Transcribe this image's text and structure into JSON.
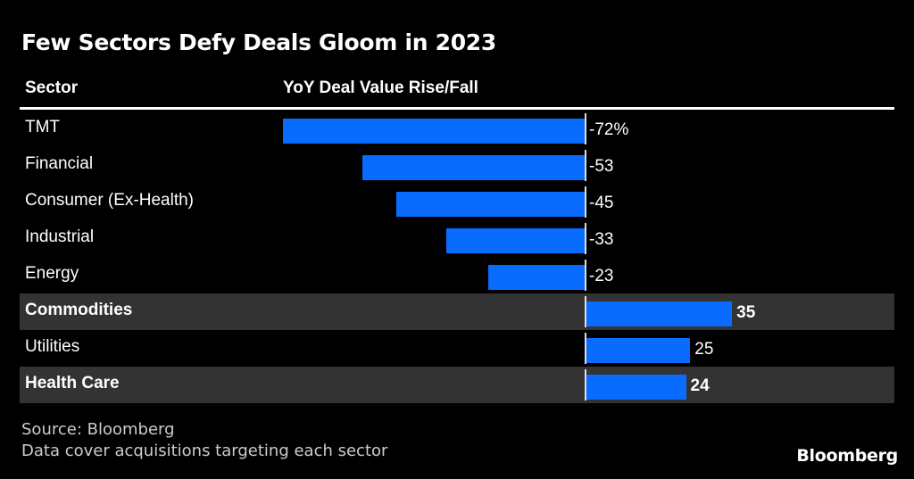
{
  "title": "Few Sectors Defy Deals Gloom in 2023",
  "columns": {
    "sector": "Sector",
    "value": "YoY Deal Value Rise/Fall"
  },
  "bar_color": "#0a6cff",
  "highlight_color": "#333333",
  "chart_data": {
    "type": "bar",
    "orientation": "horizontal",
    "title": "Few Sectors Defy Deals Gloom in 2023",
    "xlabel": "YoY Deal Value Rise/Fall",
    "ylabel": "Sector",
    "unit": "%",
    "xlim": [
      -72,
      72
    ],
    "categories": [
      "TMT",
      "Financial",
      "Consumer (Ex-Health)",
      "Industrial",
      "Energy",
      "Commodities",
      "Utilities",
      "Health Care"
    ],
    "values": [
      -72,
      -53,
      -45,
      -33,
      -23,
      35,
      25,
      24
    ],
    "labels": [
      "-72%",
      "-53",
      "-45",
      "-33",
      "-23",
      "35",
      "25",
      "24"
    ],
    "highlighted": [
      false,
      false,
      false,
      false,
      false,
      true,
      false,
      true
    ]
  },
  "footer": {
    "source": "Source: Bloomberg",
    "note": "Data cover acquisitions targeting each sector"
  },
  "brand": "Bloomberg"
}
